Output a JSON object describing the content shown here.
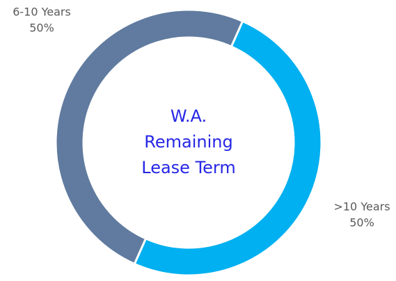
{
  "chart_data": {
    "type": "donut",
    "center_text": [
      "W.A.",
      "Remaining",
      "Lease Term"
    ],
    "categories": [
      ">10 Years",
      "6-10 Years"
    ],
    "values": [
      50,
      50
    ],
    "value_labels": [
      "50%",
      "50%"
    ],
    "colors": [
      "#00b0f0",
      "#607b9f"
    ]
  }
}
